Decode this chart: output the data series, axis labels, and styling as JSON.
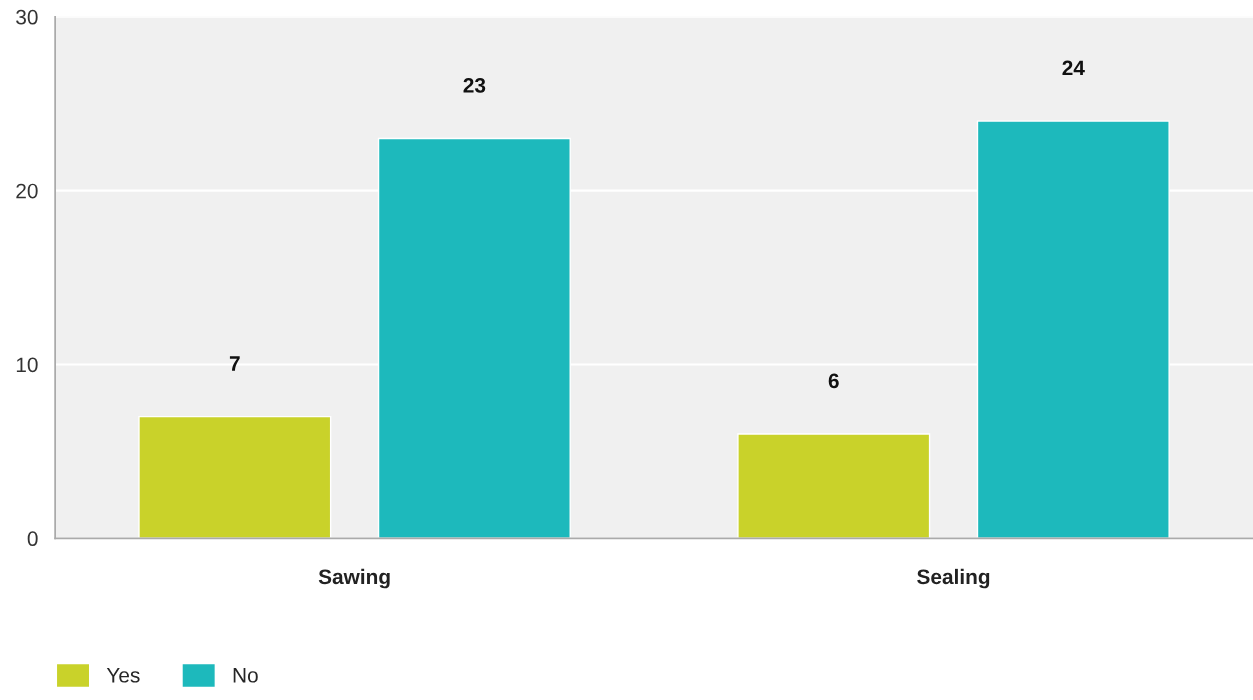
{
  "chart_data": {
    "type": "bar",
    "categories": [
      "Sawing",
      "Sealing"
    ],
    "series": [
      {
        "name": "Yes",
        "color": "#c9d22a",
        "values": [
          7,
          6
        ]
      },
      {
        "name": "No",
        "color": "#1db9bc",
        "values": [
          23,
          24
        ]
      }
    ],
    "ylim": [
      0,
      30
    ],
    "yticks": [
      0,
      10,
      20,
      30
    ],
    "grid": "y",
    "legend": "bottom left",
    "data_labels": true
  }
}
